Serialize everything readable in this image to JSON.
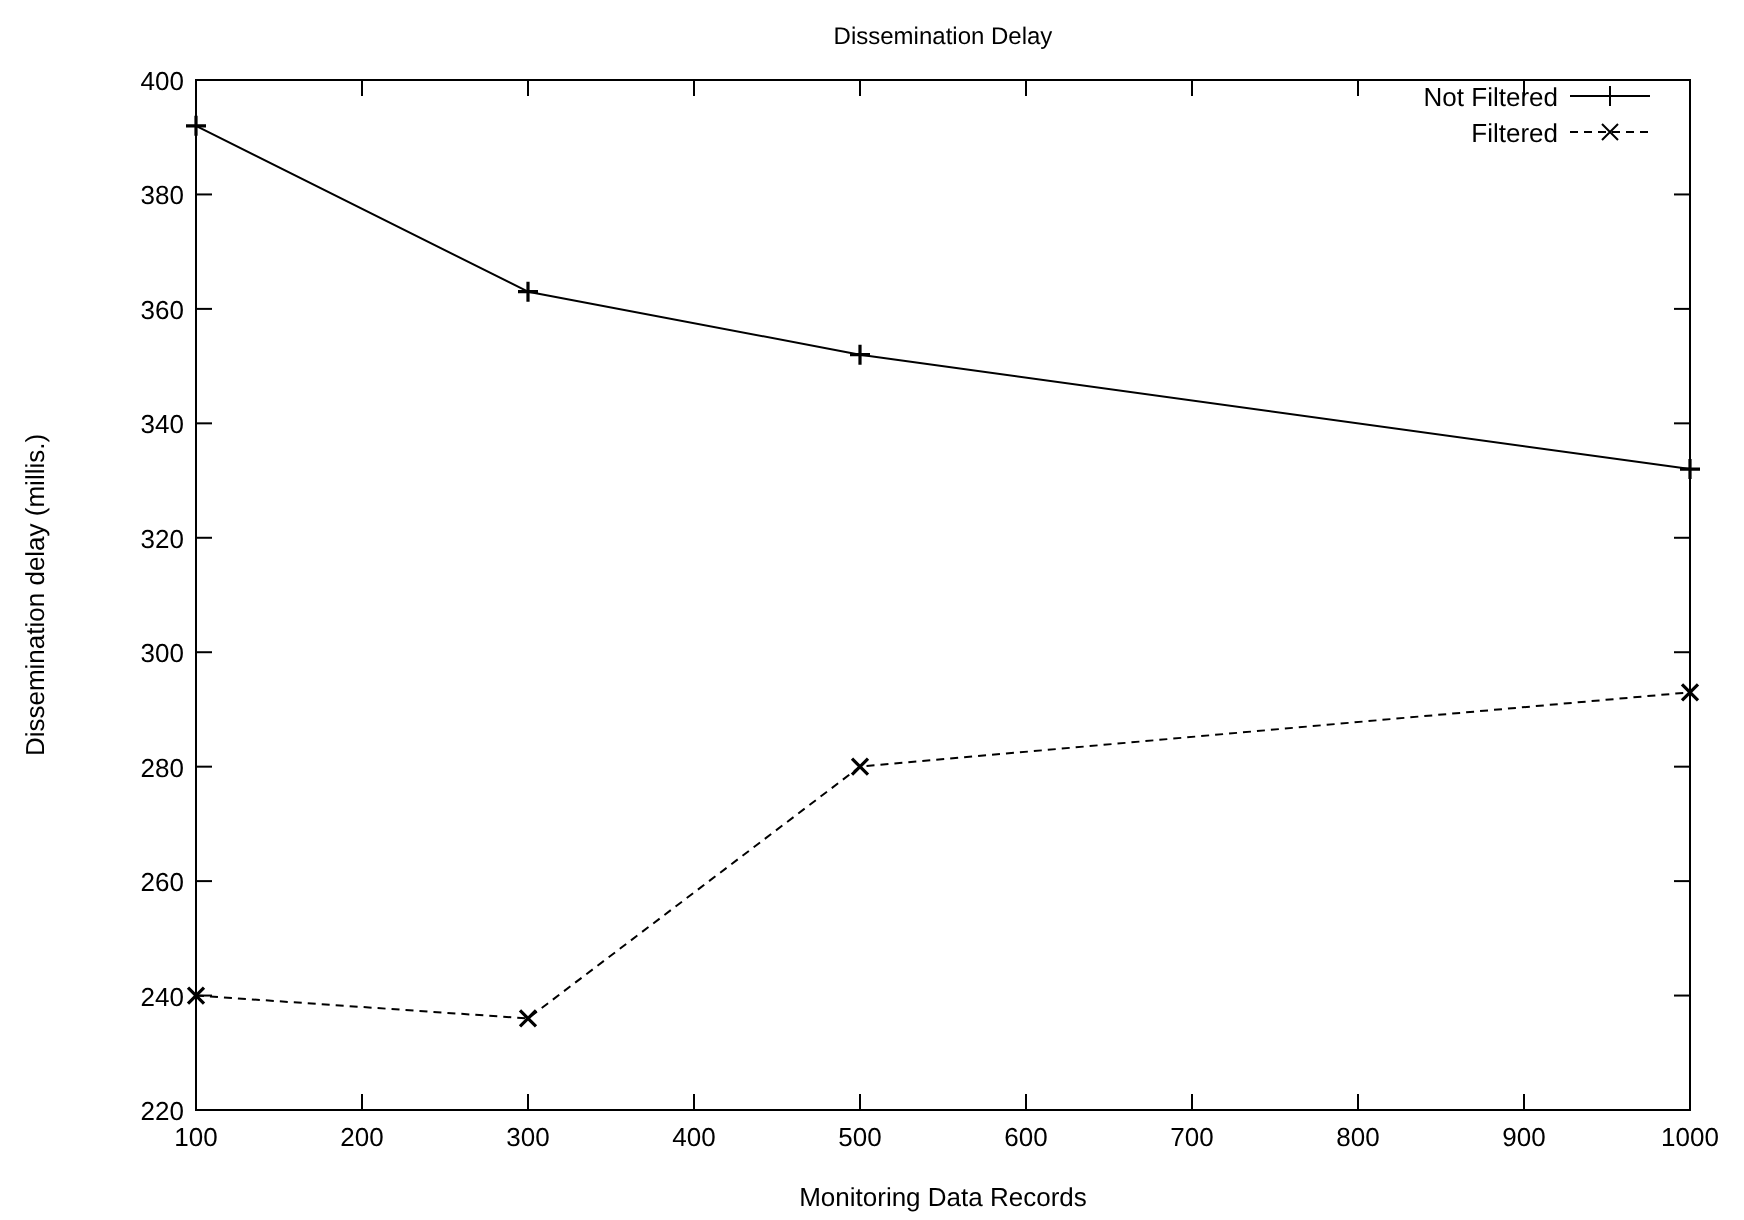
{
  "chart_data": {
    "type": "line",
    "title": "Dissemination Delay",
    "xlabel": "Monitoring Data Records",
    "ylabel": "Dissemination delay (millis.)",
    "x": [
      100,
      300,
      500,
      1000
    ],
    "series": [
      {
        "name": "Not Filtered",
        "color": "#000000",
        "values": [
          392,
          363,
          352,
          332
        ],
        "marker": "plus",
        "line_style": "solid"
      },
      {
        "name": "Filtered",
        "color": "#000000",
        "values": [
          240,
          236,
          280,
          293
        ],
        "marker": "cross",
        "line_style": "dashed"
      }
    ],
    "xlim": [
      100,
      1000
    ],
    "xticks": [
      100,
      200,
      300,
      400,
      500,
      600,
      700,
      800,
      900,
      1000
    ],
    "ylim": [
      220,
      400
    ],
    "yticks": [
      220,
      240,
      260,
      280,
      300,
      320,
      340,
      360,
      380,
      400
    ],
    "grid": false,
    "legend": "top right"
  }
}
